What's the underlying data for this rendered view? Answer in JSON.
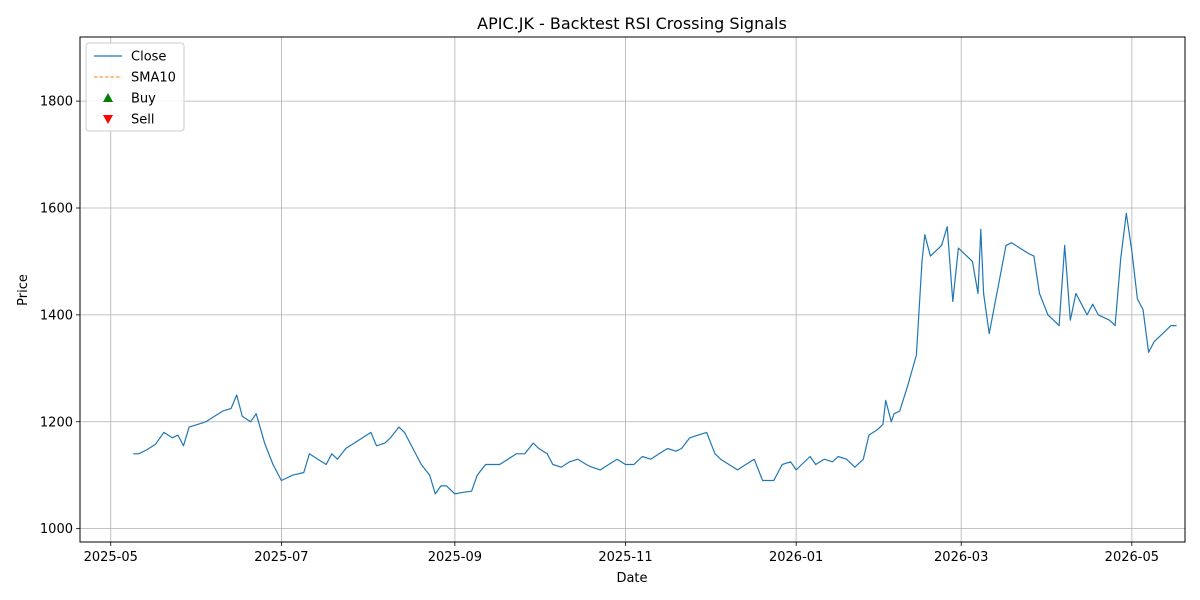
{
  "chart_data": {
    "type": "line",
    "title": "APIC.JK - Backtest RSI Crossing Signals",
    "xlabel": "Date",
    "ylabel": "Price",
    "xlim": [
      "2025-04-20",
      "2026-05-20"
    ],
    "ylim": [
      975,
      1920
    ],
    "grid": true,
    "legend_position": "top-left",
    "x_ticks": [
      "2025-05",
      "2025-07",
      "2025-09",
      "2025-11",
      "2026-01",
      "2026-03",
      "2026-05"
    ],
    "y_ticks": [
      1000,
      1200,
      1400,
      1600,
      1800
    ],
    "colors": {
      "close": "#1f77b4",
      "sma": "#ff7f0e",
      "buy": "#008000",
      "sell": "#ff0000",
      "grid": "#b0b0b0"
    },
    "legend": [
      "Close",
      "SMA10",
      "Buy",
      "Sell"
    ],
    "series": [
      {
        "name": "Close",
        "style": "solid",
        "points": [
          [
            "2025-05-09",
            1140
          ],
          [
            "2025-05-11",
            1140
          ],
          [
            "2025-05-14",
            1148
          ],
          [
            "2025-05-17",
            1158
          ],
          [
            "2025-05-20",
            1180
          ],
          [
            "2025-05-23",
            1170
          ],
          [
            "2025-05-25",
            1175
          ],
          [
            "2025-05-27",
            1155
          ],
          [
            "2025-05-29",
            1190
          ],
          [
            "2025-06-01",
            1195
          ],
          [
            "2025-06-04",
            1200
          ],
          [
            "2025-06-07",
            1210
          ],
          [
            "2025-06-10",
            1220
          ],
          [
            "2025-06-13",
            1225
          ],
          [
            "2025-06-15",
            1250
          ],
          [
            "2025-06-17",
            1210
          ],
          [
            "2025-06-20",
            1200
          ],
          [
            "2025-06-22",
            1215
          ],
          [
            "2025-06-25",
            1160
          ],
          [
            "2025-06-28",
            1120
          ],
          [
            "2025-07-01",
            1090
          ],
          [
            "2025-07-05",
            1100
          ],
          [
            "2025-07-09",
            1105
          ],
          [
            "2025-07-11",
            1140
          ],
          [
            "2025-07-14",
            1130
          ],
          [
            "2025-07-17",
            1120
          ],
          [
            "2025-07-19",
            1140
          ],
          [
            "2025-07-21",
            1130
          ],
          [
            "2025-07-24",
            1150
          ],
          [
            "2025-07-27",
            1160
          ],
          [
            "2025-07-30",
            1170
          ],
          [
            "2025-08-02",
            1180
          ],
          [
            "2025-08-04",
            1155
          ],
          [
            "2025-08-07",
            1160
          ],
          [
            "2025-08-09",
            1170
          ],
          [
            "2025-08-12",
            1190
          ],
          [
            "2025-08-14",
            1180
          ],
          [
            "2025-08-17",
            1150
          ],
          [
            "2025-08-20",
            1120
          ],
          [
            "2025-08-23",
            1100
          ],
          [
            "2025-08-25",
            1065
          ],
          [
            "2025-08-27",
            1080
          ],
          [
            "2025-08-29",
            1080
          ],
          [
            "2025-09-01",
            1065
          ],
          [
            "2025-09-04",
            1068
          ],
          [
            "2025-09-07",
            1070
          ],
          [
            "2025-09-09",
            1100
          ],
          [
            "2025-09-12",
            1120
          ],
          [
            "2025-09-15",
            1120
          ],
          [
            "2025-09-17",
            1120
          ],
          [
            "2025-09-20",
            1130
          ],
          [
            "2025-09-23",
            1140
          ],
          [
            "2025-09-26",
            1140
          ],
          [
            "2025-09-29",
            1160
          ],
          [
            "2025-10-01",
            1150
          ],
          [
            "2025-10-04",
            1140
          ],
          [
            "2025-10-06",
            1120
          ],
          [
            "2025-10-09",
            1115
          ],
          [
            "2025-10-12",
            1125
          ],
          [
            "2025-10-15",
            1130
          ],
          [
            "2025-10-18",
            1120
          ],
          [
            "2025-10-20",
            1115
          ],
          [
            "2025-10-23",
            1110
          ],
          [
            "2025-10-26",
            1120
          ],
          [
            "2025-10-29",
            1130
          ],
          [
            "2025-11-01",
            1120
          ],
          [
            "2025-11-04",
            1120
          ],
          [
            "2025-11-07",
            1135
          ],
          [
            "2025-11-10",
            1130
          ],
          [
            "2025-11-13",
            1140
          ],
          [
            "2025-11-16",
            1150
          ],
          [
            "2025-11-19",
            1145
          ],
          [
            "2025-11-21",
            1150
          ],
          [
            "2025-11-24",
            1170
          ],
          [
            "2025-11-27",
            1175
          ],
          [
            "2025-11-30",
            1180
          ],
          [
            "2025-12-03",
            1140
          ],
          [
            "2025-12-05",
            1130
          ],
          [
            "2025-12-08",
            1120
          ],
          [
            "2025-12-11",
            1110
          ],
          [
            "2025-12-14",
            1120
          ],
          [
            "2025-12-17",
            1130
          ],
          [
            "2025-12-20",
            1090
          ],
          [
            "2025-12-22",
            1090
          ],
          [
            "2025-12-24",
            1090
          ],
          [
            "2025-12-27",
            1120
          ],
          [
            "2025-12-30",
            1125
          ],
          [
            "2026-01-01",
            1110
          ],
          [
            "2026-01-03",
            1120
          ],
          [
            "2026-01-06",
            1135
          ],
          [
            "2026-01-08",
            1120
          ],
          [
            "2026-01-11",
            1130
          ],
          [
            "2026-01-14",
            1125
          ],
          [
            "2026-01-16",
            1135
          ],
          [
            "2026-01-19",
            1130
          ],
          [
            "2026-01-22",
            1115
          ],
          [
            "2026-01-25",
            1130
          ],
          [
            "2026-01-27",
            1175
          ],
          [
            "2026-01-30",
            1185
          ],
          [
            "2026-02-01",
            1195
          ],
          [
            "2026-02-02",
            1240
          ],
          [
            "2026-02-04",
            1200
          ],
          [
            "2026-02-05",
            1215
          ],
          [
            "2026-02-07",
            1220
          ],
          [
            "2026-02-10",
            1270
          ],
          [
            "2026-02-13",
            1325
          ],
          [
            "2026-02-15",
            1500
          ],
          [
            "2026-02-16",
            1550
          ],
          [
            "2026-02-18",
            1510
          ],
          [
            "2026-02-20",
            1520
          ],
          [
            "2026-02-22",
            1530
          ],
          [
            "2026-02-24",
            1565
          ],
          [
            "2026-02-26",
            1425
          ],
          [
            "2026-02-28",
            1525
          ],
          [
            "2026-03-02",
            1515
          ],
          [
            "2026-03-05",
            1500
          ],
          [
            "2026-03-07",
            1440
          ],
          [
            "2026-03-08",
            1560
          ],
          [
            "2026-03-09",
            1440
          ],
          [
            "2026-03-11",
            1365
          ],
          [
            "2026-03-13",
            1420
          ],
          [
            "2026-03-15",
            1475
          ],
          [
            "2026-03-17",
            1530
          ],
          [
            "2026-03-19",
            1535
          ],
          [
            "2026-03-22",
            1525
          ],
          [
            "2026-03-25",
            1515
          ],
          [
            "2026-03-27",
            1510
          ],
          [
            "2026-03-29",
            1440
          ],
          [
            "2026-04-01",
            1400
          ],
          [
            "2026-04-03",
            1390
          ],
          [
            "2026-04-05",
            1380
          ],
          [
            "2026-04-07",
            1530
          ],
          [
            "2026-04-09",
            1390
          ],
          [
            "2026-04-11",
            1440
          ],
          [
            "2026-04-13",
            1420
          ],
          [
            "2026-04-15",
            1400
          ],
          [
            "2026-04-17",
            1420
          ],
          [
            "2026-04-19",
            1400
          ],
          [
            "2026-04-21",
            1395
          ],
          [
            "2026-04-23",
            1390
          ],
          [
            "2026-04-25",
            1380
          ],
          [
            "2026-04-27",
            1505
          ],
          [
            "2026-04-29",
            1590
          ],
          [
            "2026-05-01",
            1520
          ],
          [
            "2026-05-03",
            1430
          ],
          [
            "2026-05-05",
            1410
          ],
          [
            "2026-05-07",
            1330
          ],
          [
            "2026-05-09",
            1350
          ],
          [
            "2026-05-11",
            1360
          ],
          [
            "2026-05-13",
            1370
          ],
          [
            "2026-05-15",
            1380
          ],
          [
            "2026-05-17",
            1380
          ]
        ]
      }
    ]
  }
}
